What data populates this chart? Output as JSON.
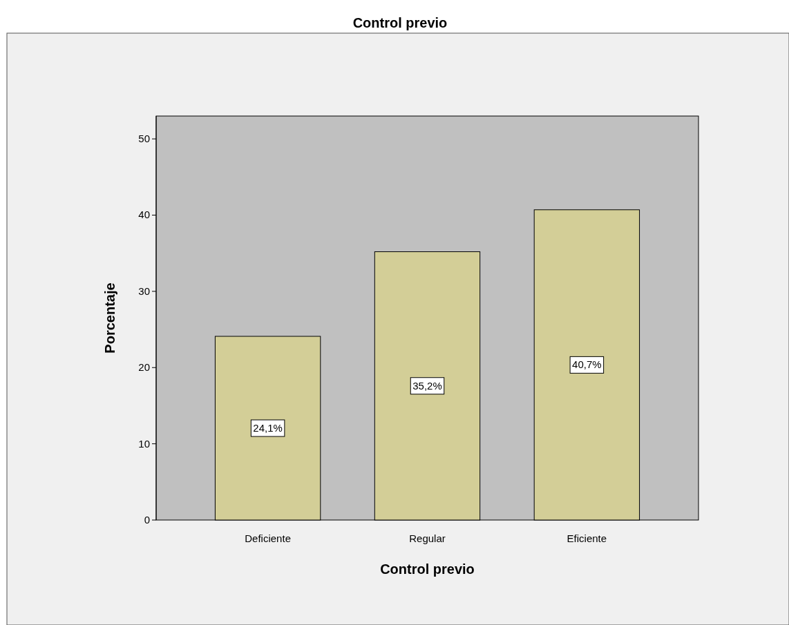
{
  "chart_data": {
    "type": "bar",
    "title": "Control previo",
    "xlabel": "Control previo",
    "ylabel": "Porcentaje",
    "categories": [
      "Deficiente",
      "Regular",
      "Eficiente"
    ],
    "values": [
      24.1,
      35.2,
      40.7
    ],
    "value_labels": [
      "24,1%",
      "35,2%",
      "40,7%"
    ],
    "color": "#d3ce97",
    "ylim": [
      0,
      53
    ],
    "yticks": [
      0,
      10,
      20,
      30,
      40,
      50
    ]
  }
}
